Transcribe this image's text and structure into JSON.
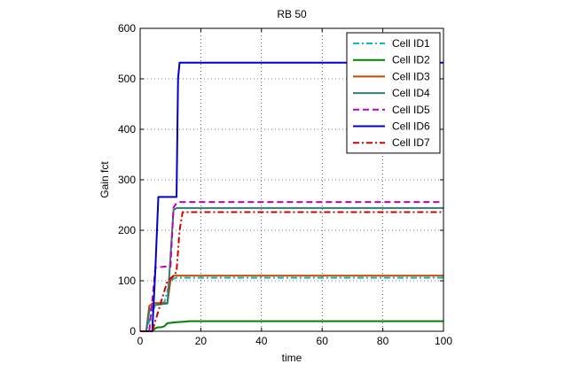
{
  "chart_data": {
    "type": "line",
    "title": "RB 50",
    "xlabel": "time",
    "ylabel": "Gain fct",
    "xlim": [
      0,
      100
    ],
    "ylim": [
      0,
      600
    ],
    "xticks": [
      0,
      20,
      40,
      60,
      80,
      100
    ],
    "yticks": [
      0,
      100,
      200,
      300,
      400,
      500,
      600
    ],
    "grid": "dotted",
    "legend_position": "top-right",
    "series": [
      {
        "name": "Cell ID1",
        "color": "#00bfbf",
        "style": "dashdot",
        "points": [
          [
            0,
            0
          ],
          [
            2,
            0
          ],
          [
            3,
            20
          ],
          [
            4,
            40
          ],
          [
            5,
            50
          ],
          [
            8,
            58
          ],
          [
            9,
            80
          ],
          [
            10,
            100
          ],
          [
            11,
            104
          ],
          [
            12,
            106
          ],
          [
            20,
            106
          ],
          [
            100,
            106
          ]
        ]
      },
      {
        "name": "Cell ID2",
        "color": "#008000",
        "style": "solid",
        "points": [
          [
            0,
            0
          ],
          [
            4,
            0
          ],
          [
            5,
            6
          ],
          [
            6,
            8
          ],
          [
            7,
            8
          ],
          [
            8,
            10
          ],
          [
            9,
            16
          ],
          [
            12,
            18
          ],
          [
            15,
            19
          ],
          [
            16,
            20
          ],
          [
            100,
            20
          ]
        ]
      },
      {
        "name": "Cell ID3",
        "color": "#cc4400",
        "style": "solid",
        "points": [
          [
            0,
            0
          ],
          [
            2,
            0
          ],
          [
            3,
            50
          ],
          [
            4,
            55
          ],
          [
            5,
            56
          ],
          [
            9,
            56
          ],
          [
            10,
            100
          ],
          [
            11,
            110
          ],
          [
            20,
            110
          ],
          [
            100,
            110
          ]
        ]
      },
      {
        "name": "Cell ID4",
        "color": "#2e7d6e",
        "style": "solid",
        "points": [
          [
            0,
            0
          ],
          [
            2,
            0
          ],
          [
            3,
            40
          ],
          [
            4,
            50
          ],
          [
            5,
            52
          ],
          [
            9,
            55
          ],
          [
            11,
            240
          ],
          [
            12,
            244
          ],
          [
            20,
            244
          ],
          [
            100,
            244
          ]
        ]
      },
      {
        "name": "Cell ID5",
        "color": "#bf00bf",
        "style": "dashed",
        "points": [
          [
            0,
            0
          ],
          [
            3,
            0
          ],
          [
            4,
            60
          ],
          [
            5,
            126
          ],
          [
            8,
            128
          ],
          [
            10,
            128
          ],
          [
            11,
            245
          ],
          [
            12,
            254
          ],
          [
            13,
            256
          ],
          [
            20,
            256
          ],
          [
            100,
            256
          ]
        ]
      },
      {
        "name": "Cell ID6",
        "color": "#0000cc",
        "style": "solid",
        "points": [
          [
            0,
            0
          ],
          [
            4,
            0
          ],
          [
            5,
            120
          ],
          [
            6,
            266
          ],
          [
            12,
            266
          ],
          [
            12.5,
            500
          ],
          [
            13,
            532
          ],
          [
            20,
            532
          ],
          [
            100,
            532
          ]
        ]
      },
      {
        "name": "Cell ID7",
        "color": "#d00000",
        "style": "dashdot",
        "points": [
          [
            0,
            0
          ],
          [
            4,
            0
          ],
          [
            5,
            20
          ],
          [
            6,
            40
          ],
          [
            7,
            60
          ],
          [
            8,
            80
          ],
          [
            9,
            100
          ],
          [
            11,
            110
          ],
          [
            12,
            118
          ],
          [
            13,
            200
          ],
          [
            14,
            236
          ],
          [
            20,
            236
          ],
          [
            100,
            236
          ]
        ]
      }
    ]
  }
}
